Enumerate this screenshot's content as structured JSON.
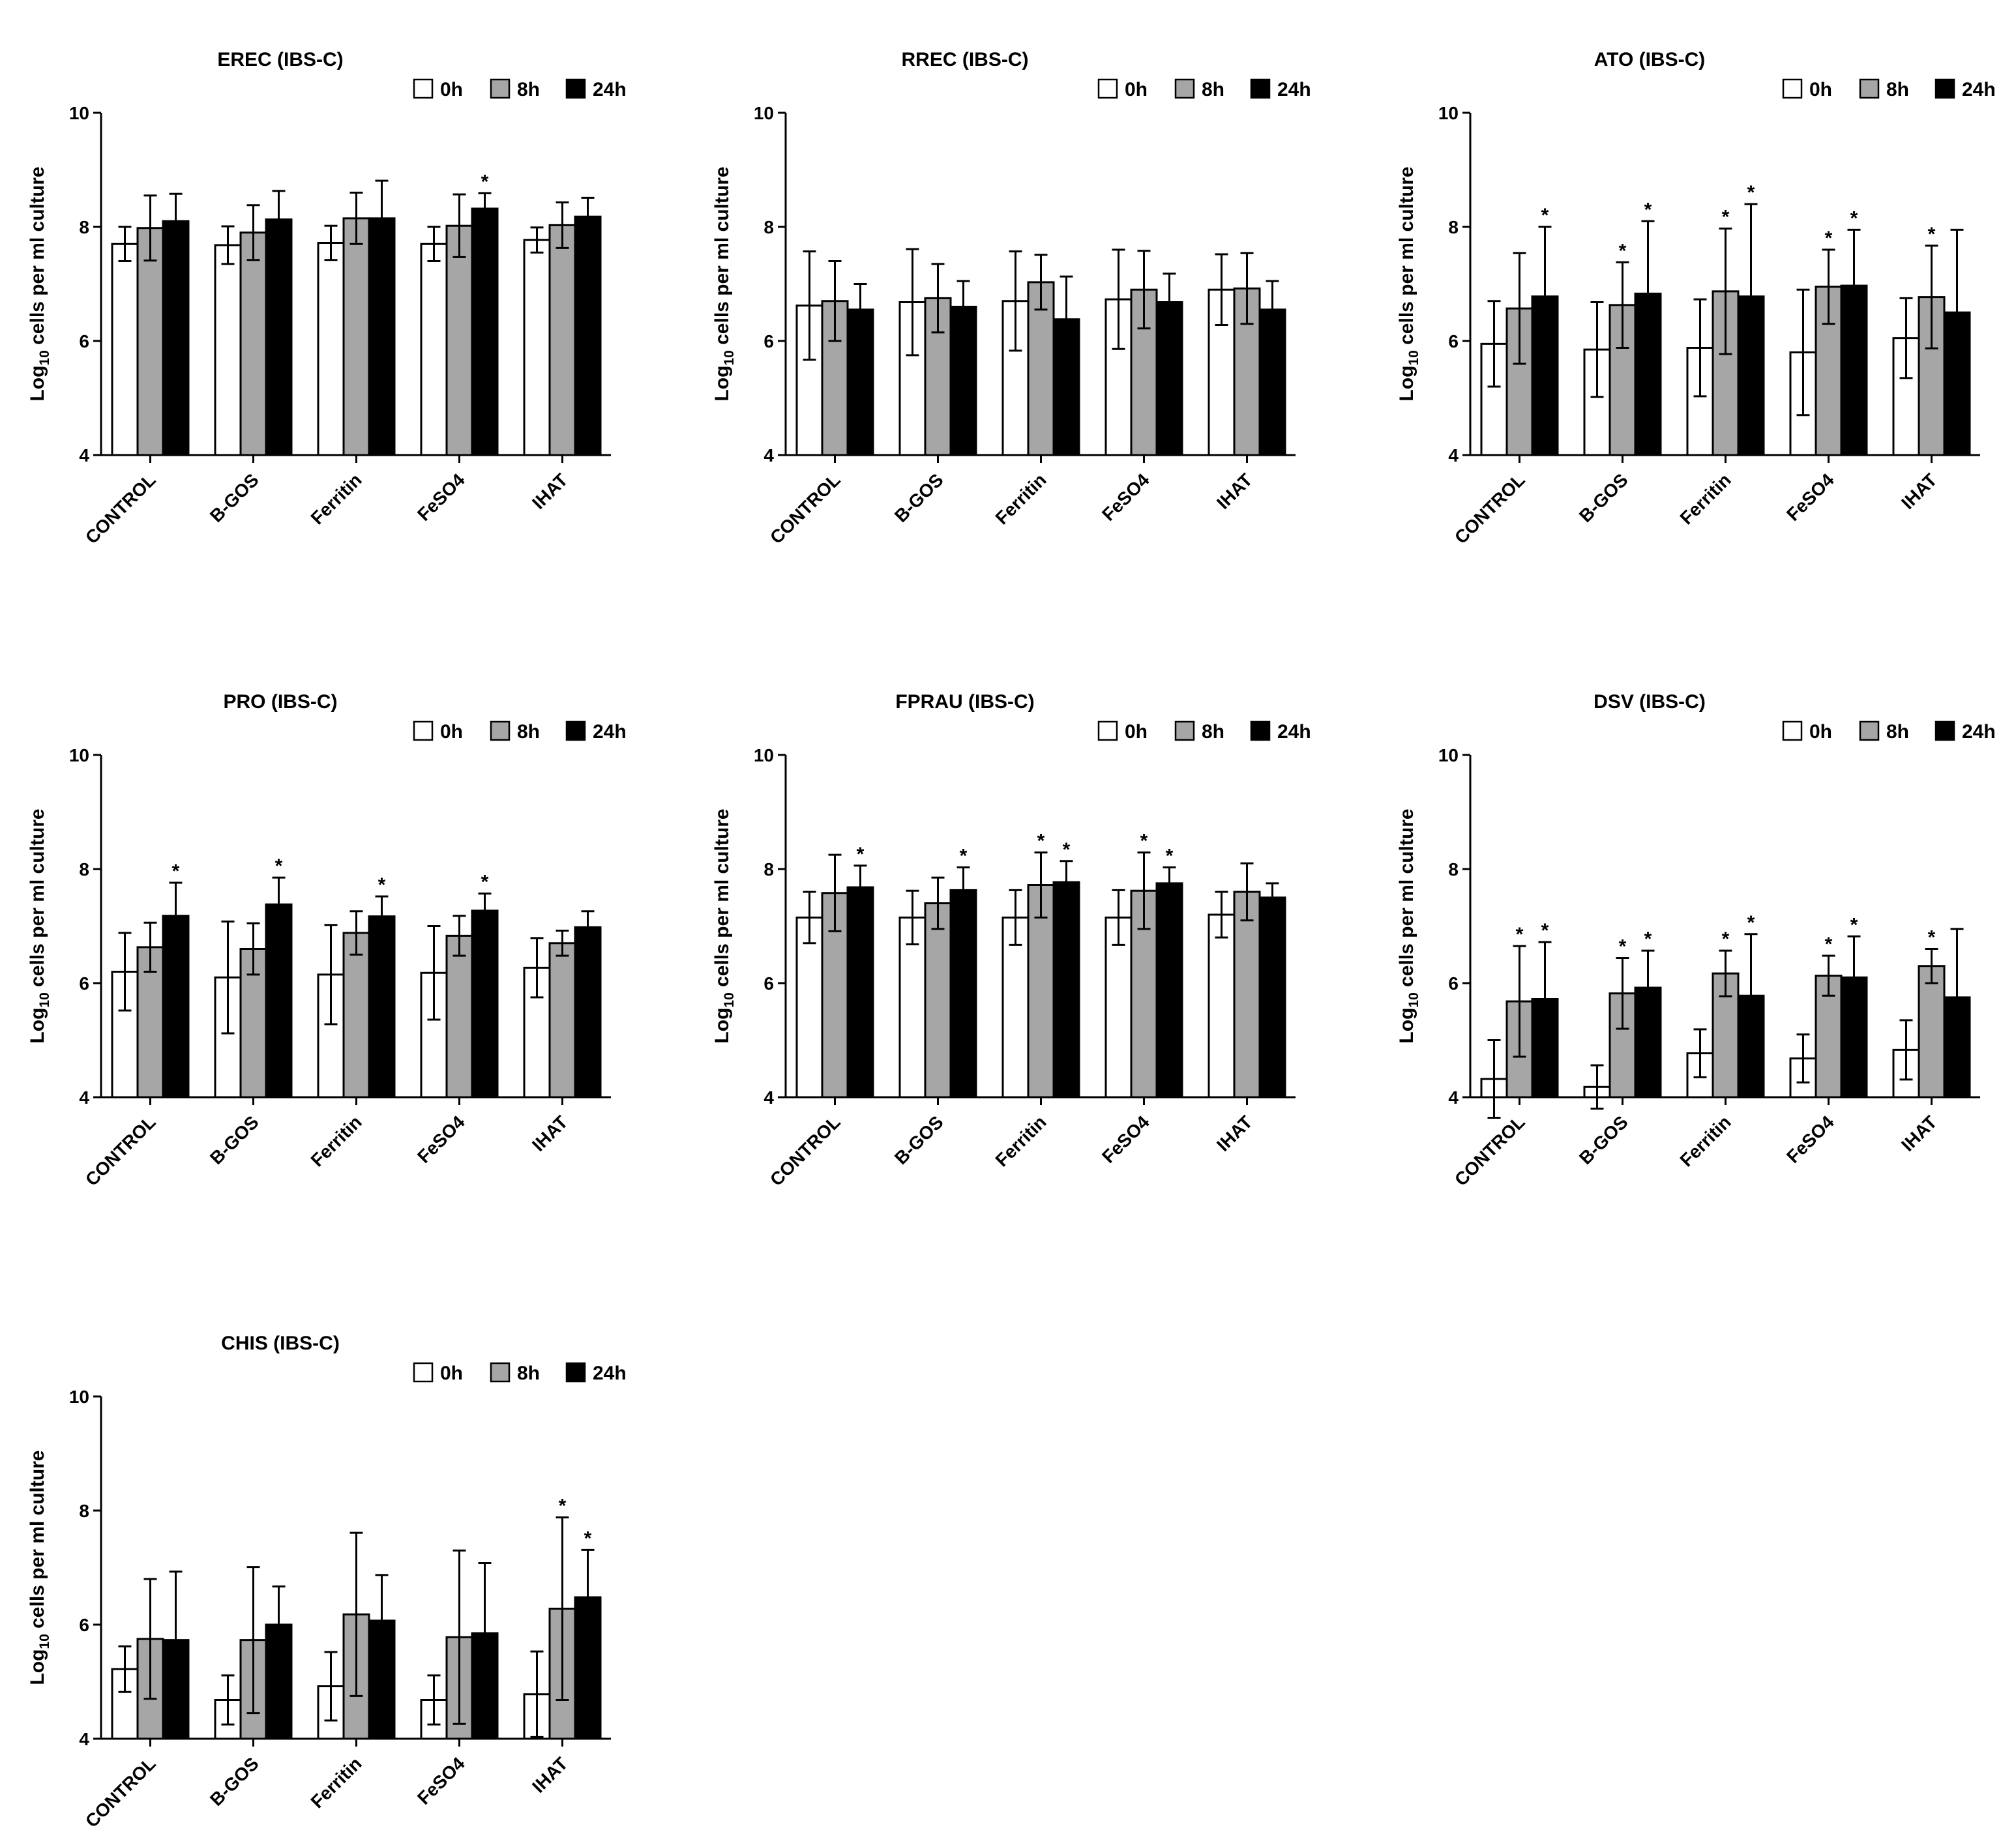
{
  "legend_labels": [
    "0h",
    "8h",
    "24h"
  ],
  "series_colors": [
    "#ffffff",
    "#a6a6a6",
    "#000000"
  ],
  "y_label_prefix": "Log",
  "y_label_sub": "10",
  "y_label_suffix": " cells per ml culture",
  "chart_data": [
    {
      "type": "bar",
      "title": "EREC (IBS-C)",
      "categories": [
        "CONTROL",
        "B-GOS",
        "Ferritin",
        "FeSO4",
        "IHAT"
      ],
      "ylim": [
        4,
        10
      ],
      "yticks": [
        "4",
        "6",
        "8",
        "10"
      ],
      "series": [
        {
          "name": "0h",
          "values": [
            7.7,
            7.68,
            7.72,
            7.7,
            7.77
          ],
          "errors": [
            0.3,
            0.33,
            0.3,
            0.3,
            0.22
          ]
        },
        {
          "name": "8h",
          "values": [
            7.98,
            7.9,
            8.15,
            8.02,
            8.03
          ],
          "errors": [
            0.57,
            0.48,
            0.45,
            0.55,
            0.4
          ]
        },
        {
          "name": "24h",
          "values": [
            8.1,
            8.13,
            8.15,
            8.32,
            8.18
          ],
          "errors": [
            0.48,
            0.5,
            0.66,
            0.27,
            0.33
          ]
        }
      ],
      "significant": [
        [
          false,
          false,
          false,
          false,
          false
        ],
        [
          false,
          false,
          false,
          false,
          false
        ],
        [
          false,
          false,
          false,
          true,
          false
        ]
      ]
    },
    {
      "type": "bar",
      "title": "RREC (IBS-C)",
      "categories": [
        "CONTROL",
        "B-GOS",
        "Ferritin",
        "FeSO4",
        "IHAT"
      ],
      "ylim": [
        4,
        10
      ],
      "yticks": [
        "4",
        "6",
        "8",
        "10"
      ],
      "series": [
        {
          "name": "0h",
          "values": [
            6.62,
            6.68,
            6.7,
            6.73,
            6.9
          ],
          "errors": [
            0.95,
            0.93,
            0.87,
            0.87,
            0.62
          ]
        },
        {
          "name": "8h",
          "values": [
            6.7,
            6.75,
            7.03,
            6.9,
            6.92
          ],
          "errors": [
            0.7,
            0.6,
            0.48,
            0.68,
            0.62
          ]
        },
        {
          "name": "24h",
          "values": [
            6.55,
            6.6,
            6.38,
            6.68,
            6.55
          ],
          "errors": [
            0.45,
            0.45,
            0.75,
            0.5,
            0.5
          ]
        }
      ],
      "significant": [
        [
          false,
          false,
          false,
          false,
          false
        ],
        [
          false,
          false,
          false,
          false,
          false
        ],
        [
          false,
          false,
          false,
          false,
          false
        ]
      ]
    },
    {
      "type": "bar",
      "title": "ATO (IBS-C)",
      "categories": [
        "CONTROL",
        "B-GOS",
        "Ferritin",
        "FeSO4",
        "IHAT"
      ],
      "ylim": [
        4,
        10
      ],
      "yticks": [
        "4",
        "6",
        "8",
        "10"
      ],
      "series": [
        {
          "name": "0h",
          "values": [
            5.95,
            5.85,
            5.88,
            5.8,
            6.05
          ],
          "errors": [
            0.75,
            0.83,
            0.85,
            1.1,
            0.7
          ]
        },
        {
          "name": "8h",
          "values": [
            6.57,
            6.63,
            6.87,
            6.95,
            6.77
          ],
          "errors": [
            0.97,
            0.75,
            1.1,
            0.65,
            0.9
          ]
        },
        {
          "name": "24h",
          "values": [
            6.78,
            6.83,
            6.78,
            6.97,
            6.5
          ],
          "errors": [
            1.22,
            1.27,
            1.62,
            0.98,
            1.45
          ]
        }
      ],
      "significant": [
        [
          false,
          false,
          false,
          false,
          false
        ],
        [
          false,
          true,
          true,
          true,
          true
        ],
        [
          true,
          true,
          true,
          true,
          false
        ]
      ]
    },
    {
      "type": "bar",
      "title": "PRO (IBS-C)",
      "categories": [
        "CONTROL",
        "B-GOS",
        "Ferritin",
        "FeSO4",
        "IHAT"
      ],
      "ylim": [
        4,
        10
      ],
      "yticks": [
        "4",
        "6",
        "8",
        "10"
      ],
      "series": [
        {
          "name": "0h",
          "values": [
            6.2,
            6.1,
            6.15,
            6.18,
            6.27
          ],
          "errors": [
            0.68,
            0.98,
            0.87,
            0.82,
            0.52
          ]
        },
        {
          "name": "8h",
          "values": [
            6.63,
            6.6,
            6.88,
            6.83,
            6.7
          ],
          "errors": [
            0.43,
            0.45,
            0.38,
            0.35,
            0.22
          ]
        },
        {
          "name": "24h",
          "values": [
            7.18,
            7.38,
            7.17,
            7.27,
            6.98
          ],
          "errors": [
            0.58,
            0.47,
            0.35,
            0.3,
            0.28
          ]
        }
      ],
      "significant": [
        [
          false,
          false,
          false,
          false,
          false
        ],
        [
          false,
          false,
          false,
          false,
          false
        ],
        [
          true,
          true,
          true,
          true,
          false
        ]
      ]
    },
    {
      "type": "bar",
      "title": "FPRAU (IBS-C)",
      "categories": [
        "CONTROL",
        "B-GOS",
        "Ferritin",
        "FeSO4",
        "IHAT"
      ],
      "ylim": [
        4,
        10
      ],
      "yticks": [
        "4",
        "6",
        "8",
        "10"
      ],
      "series": [
        {
          "name": "0h",
          "values": [
            7.15,
            7.15,
            7.15,
            7.15,
            7.2
          ],
          "errors": [
            0.45,
            0.47,
            0.48,
            0.48,
            0.4
          ]
        },
        {
          "name": "8h",
          "values": [
            7.58,
            7.4,
            7.72,
            7.62,
            7.6
          ],
          "errors": [
            0.67,
            0.45,
            0.57,
            0.67,
            0.5
          ]
        },
        {
          "name": "24h",
          "values": [
            7.68,
            7.63,
            7.77,
            7.75,
            7.5
          ],
          "errors": [
            0.38,
            0.4,
            0.37,
            0.28,
            0.25
          ]
        }
      ],
      "significant": [
        [
          false,
          false,
          false,
          false,
          false
        ],
        [
          false,
          false,
          true,
          true,
          false
        ],
        [
          true,
          true,
          true,
          true,
          false
        ]
      ]
    },
    {
      "type": "bar",
      "title": "DSV (IBS-C)",
      "categories": [
        "CONTROL",
        "B-GOS",
        "Ferritin",
        "FeSO4",
        "IHAT"
      ],
      "ylim": [
        4,
        10
      ],
      "yticks": [
        "4",
        "6",
        "8",
        "10"
      ],
      "series": [
        {
          "name": "0h",
          "values": [
            4.32,
            4.18,
            4.77,
            4.68,
            4.83
          ],
          "errors": [
            0.68,
            0.38,
            0.42,
            0.42,
            0.52
          ]
        },
        {
          "name": "8h",
          "values": [
            5.68,
            5.82,
            6.17,
            6.13,
            6.3
          ],
          "errors": [
            0.97,
            0.62,
            0.4,
            0.35,
            0.3
          ]
        },
        {
          "name": "24h",
          "values": [
            5.72,
            5.92,
            5.78,
            6.1,
            5.75
          ],
          "errors": [
            1.0,
            0.65,
            1.08,
            0.72,
            1.2
          ]
        }
      ],
      "significant": [
        [
          false,
          false,
          false,
          false,
          false
        ],
        [
          true,
          true,
          true,
          true,
          true
        ],
        [
          true,
          true,
          true,
          true,
          false
        ]
      ]
    },
    {
      "type": "bar",
      "title": "CHIS (IBS-C)",
      "categories": [
        "CONTROL",
        "B-GOS",
        "Ferritin",
        "FeSO4",
        "IHAT"
      ],
      "ylim": [
        4,
        10
      ],
      "yticks": [
        "4",
        "6",
        "8",
        "10"
      ],
      "series": [
        {
          "name": "0h",
          "values": [
            5.22,
            4.68,
            4.92,
            4.68,
            4.78
          ],
          "errors": [
            0.4,
            0.43,
            0.6,
            0.43,
            0.75
          ]
        },
        {
          "name": "8h",
          "values": [
            5.75,
            5.73,
            6.18,
            5.78,
            6.28
          ],
          "errors": [
            1.05,
            1.28,
            1.43,
            1.52,
            1.6
          ]
        },
        {
          "name": "24h",
          "values": [
            5.73,
            6.0,
            6.07,
            5.85,
            6.48
          ],
          "errors": [
            1.2,
            0.67,
            0.8,
            1.23,
            0.83
          ]
        }
      ],
      "significant": [
        [
          false,
          false,
          false,
          false,
          false
        ],
        [
          false,
          false,
          false,
          false,
          true
        ],
        [
          false,
          false,
          false,
          false,
          true
        ]
      ]
    }
  ]
}
